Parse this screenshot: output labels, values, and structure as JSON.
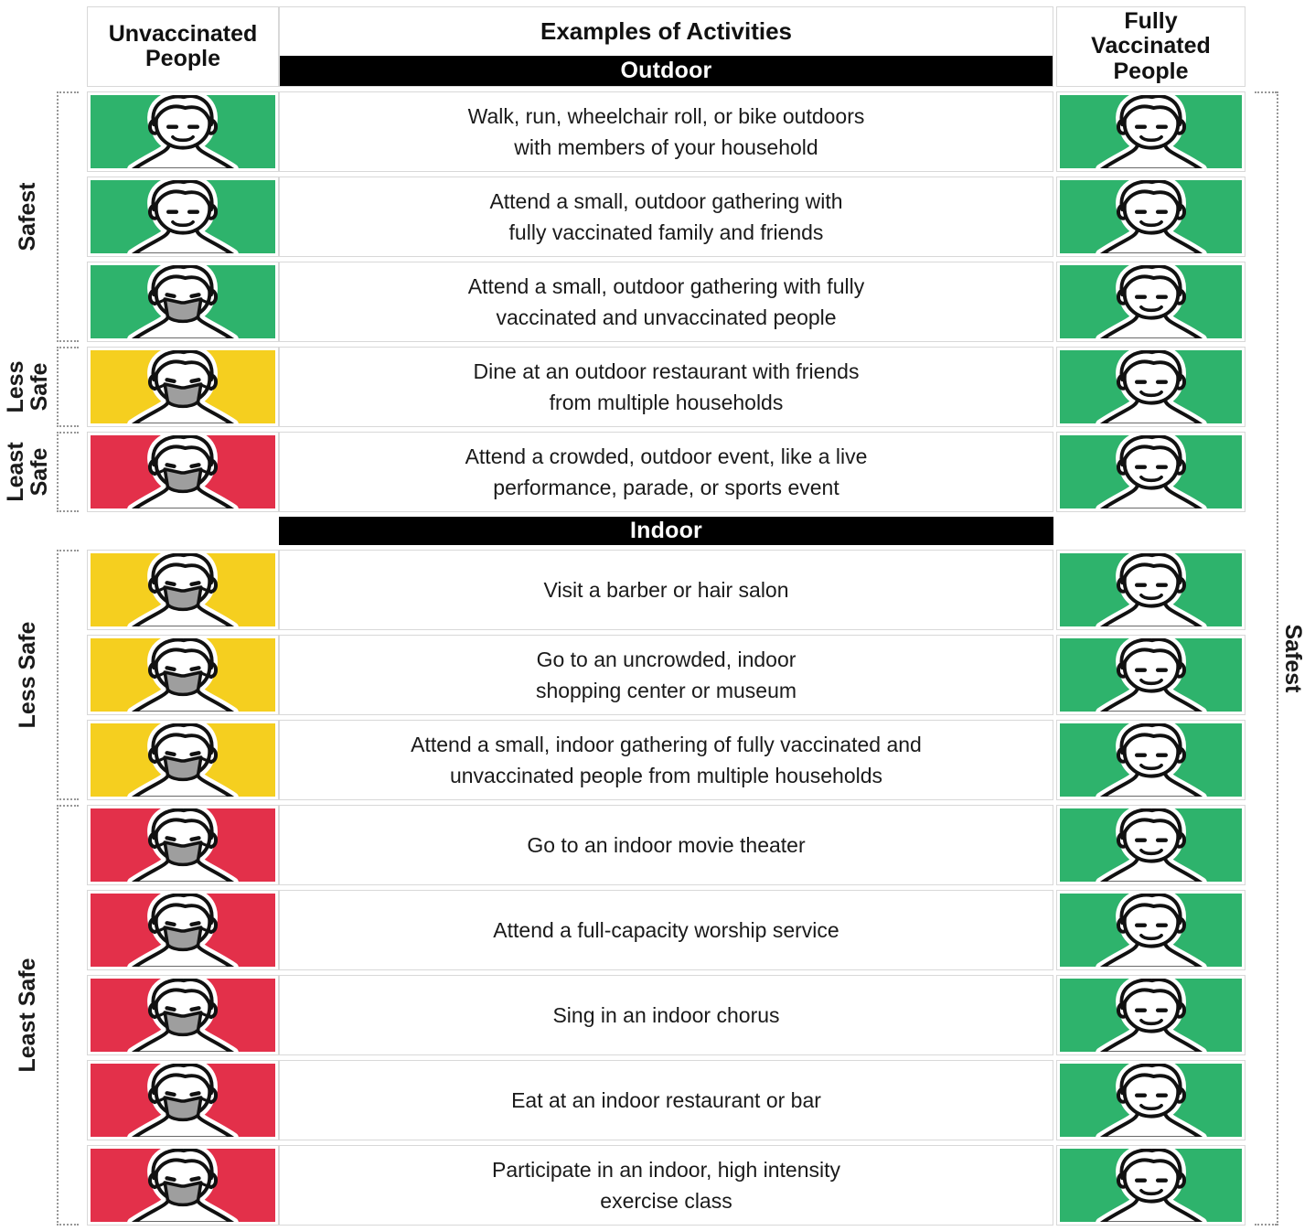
{
  "header": {
    "unvaccinated": "Unvaccinated\nPeople",
    "activities": "Examples of Activities",
    "vaccinated": "Fully\nVaccinated\nPeople"
  },
  "risk_colors": {
    "safest": "#2eb36c",
    "less_safe": "#f5cf1f",
    "least_safe": "#e3304a"
  },
  "mask_color": "#9e9e9e",
  "right_label": "Safest",
  "left_groups": [
    {
      "label": "Safest",
      "section": 0,
      "start": 0,
      "end": 2
    },
    {
      "label": "Less\nSafe",
      "section": 0,
      "start": 3,
      "end": 3
    },
    {
      "label": "Least\nSafe",
      "section": 0,
      "start": 4,
      "end": 4
    },
    {
      "label": "Less Safe",
      "section": 1,
      "start": 0,
      "end": 2
    },
    {
      "label": "Least Safe",
      "section": 1,
      "start": 3,
      "end": 7
    }
  ],
  "sections": [
    {
      "label": "Outdoor",
      "rows": [
        {
          "activity": "Walk, run, wheelchair roll, or bike outdoors\nwith members of your household",
          "unvaccinated": {
            "risk": "safest",
            "masked": false
          },
          "vaccinated": {
            "risk": "safest",
            "masked": false
          }
        },
        {
          "activity": "Attend a small, outdoor gathering with\nfully vaccinated family and friends",
          "unvaccinated": {
            "risk": "safest",
            "masked": false
          },
          "vaccinated": {
            "risk": "safest",
            "masked": false
          }
        },
        {
          "activity": "Attend a small, outdoor gathering with fully\nvaccinated and unvaccinated people",
          "unvaccinated": {
            "risk": "safest",
            "masked": true
          },
          "vaccinated": {
            "risk": "safest",
            "masked": false
          }
        },
        {
          "activity": "Dine at an outdoor restaurant with friends\nfrom multiple households",
          "unvaccinated": {
            "risk": "less_safe",
            "masked": true
          },
          "vaccinated": {
            "risk": "safest",
            "masked": false
          }
        },
        {
          "activity": "Attend a crowded, outdoor event, like a live\nperformance, parade, or sports event",
          "unvaccinated": {
            "risk": "least_safe",
            "masked": true
          },
          "vaccinated": {
            "risk": "safest",
            "masked": false
          }
        }
      ]
    },
    {
      "label": "Indoor",
      "rows": [
        {
          "activity": "Visit a barber or hair salon",
          "unvaccinated": {
            "risk": "less_safe",
            "masked": true
          },
          "vaccinated": {
            "risk": "safest",
            "masked": false
          }
        },
        {
          "activity": "Go to an uncrowded, indoor\nshopping center or museum",
          "unvaccinated": {
            "risk": "less_safe",
            "masked": true
          },
          "vaccinated": {
            "risk": "safest",
            "masked": false
          }
        },
        {
          "activity": "Attend a small, indoor gathering of fully vaccinated and\nunvaccinated people from multiple households",
          "unvaccinated": {
            "risk": "less_safe",
            "masked": true
          },
          "vaccinated": {
            "risk": "safest",
            "masked": false
          }
        },
        {
          "activity": "Go to an indoor movie theater",
          "unvaccinated": {
            "risk": "least_safe",
            "masked": true
          },
          "vaccinated": {
            "risk": "safest",
            "masked": false
          }
        },
        {
          "activity": "Attend a full-capacity worship service",
          "unvaccinated": {
            "risk": "least_safe",
            "masked": true
          },
          "vaccinated": {
            "risk": "safest",
            "masked": false
          }
        },
        {
          "activity": "Sing in an indoor chorus",
          "unvaccinated": {
            "risk": "least_safe",
            "masked": true
          },
          "vaccinated": {
            "risk": "safest",
            "masked": false
          }
        },
        {
          "activity": "Eat at an indoor restaurant or bar",
          "unvaccinated": {
            "risk": "least_safe",
            "masked": true
          },
          "vaccinated": {
            "risk": "safest",
            "masked": false
          }
        },
        {
          "activity": "Participate in an indoor, high intensity\nexercise class",
          "unvaccinated": {
            "risk": "least_safe",
            "masked": true
          },
          "vaccinated": {
            "risk": "safest",
            "masked": false
          }
        }
      ]
    }
  ]
}
